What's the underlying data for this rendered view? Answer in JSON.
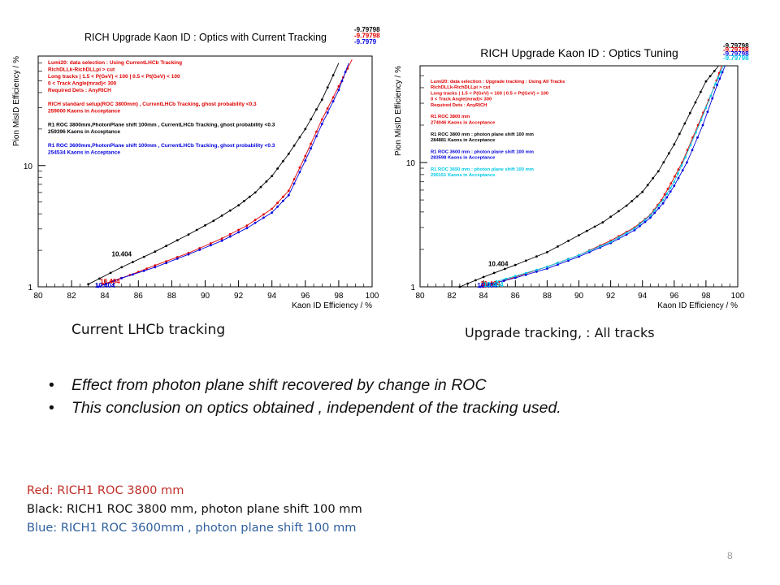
{
  "slide": {
    "page_number": "8",
    "caption_left": "Current LHCb  tracking",
    "caption_right": "Upgrade tracking, : All tracks",
    "bullets": [
      "Effect from photon plane shift recovered by  change in   ROC",
      "This conclusion on optics obtained , independent of the tracking used."
    ],
    "legend_lines": [
      {
        "text": "Red: RICH1 ROC 3800 mm",
        "color": "#c0302a"
      },
      {
        "text": "Black: RICH1 ROC 3800 mm, photon plane shift 100 mm",
        "color": "#111111"
      },
      {
        "text": "Blue: RICH1 ROC 3600mm , photon plane shift 100 mm",
        "color": "#2e5f9e"
      }
    ]
  },
  "chart_data": [
    {
      "type": "line",
      "title": "RICH Upgrade Kaon ID :   Optics with Current Tracking",
      "xlabel": "Kaon ID Efficiency / %",
      "ylabel": "Pion MisID Efficiency / %",
      "xlim": [
        80,
        100
      ],
      "ylim": [
        1,
        80
      ],
      "yscale": "log",
      "x_ticks": [
        "80",
        "82",
        "84",
        "86",
        "88",
        "90",
        "92",
        "94",
        "96",
        "98",
        "100"
      ],
      "y_ticks": [
        "1",
        "10"
      ],
      "top_right_labels": [
        {
          "text": "-9.79798",
          "color": "#000000"
        },
        {
          "text": "-9.79798",
          "color": "#e00000"
        },
        {
          "text": "-9.7979",
          "color": "#0000e0"
        }
      ],
      "point_labels": [
        {
          "text": "10.404",
          "x": 84.6,
          "y": 1.7,
          "color": "#000000"
        },
        {
          "text": "10.404",
          "x": 83.9,
          "y": 1.05,
          "color": "#e00000"
        },
        {
          "text": "10.404",
          "x": 83.6,
          "y": 1.0,
          "color": "#0000e0"
        }
      ],
      "annotations": [
        {
          "text": "Lumi20: data selection : Using CurrentLHCb Tracking",
          "color": "#e00000"
        },
        {
          "text": "RichDLLk-RichDLLpi > cut",
          "color": "#e00000"
        },
        {
          "text": "Long tracks | 1.5 < P(GeV) < 100 | 0.5 < Pt(GeV) < 100",
          "color": "#e00000"
        },
        {
          "text": "  0 < Track Angle(mrad)< 300",
          "color": "#e00000"
        },
        {
          "text": "Required Dets : AnyRICH",
          "color": "#e00000"
        },
        {
          "text": "",
          "color": "#e00000"
        },
        {
          "text": "RICH standard setup(ROC 3800mm) , CurrentLHCb Tracking, ghost probability <0.3",
          "color": "#e00000"
        },
        {
          "text": "259000 Kaons in Acceptance",
          "color": "#e00000"
        },
        {
          "text": "",
          "color": "#000000"
        },
        {
          "text": "R1 ROC 3800mm,PhotonPlane shift 100mm , CurrentLHCb Tracking, ghost probability <0.3",
          "color": "#000000"
        },
        {
          "text": "259396 Kaons in Acceptance",
          "color": "#000000"
        },
        {
          "text": "",
          "color": "#0000e0"
        },
        {
          "text": "R1 ROC 3600mm,PhotonPlane shift 100mm , CurrentLHCb Tracking, ghost probability <0.3",
          "color": "#0000e0"
        },
        {
          "text": "254534 Kaons in Acceptance",
          "color": "#0000e0"
        }
      ],
      "series": [
        {
          "color": "#000000",
          "x": [
            83.0,
            85.0,
            87.0,
            89.0,
            90.5,
            92.0,
            93.0,
            94.0,
            95.0,
            96.0,
            97.0,
            98.0
          ],
          "y": [
            1.05,
            1.45,
            1.95,
            2.7,
            3.5,
            4.7,
            6.0,
            8.2,
            12.5,
            20,
            35,
            70
          ]
        },
        {
          "color": "#e00000",
          "x": [
            83.9,
            85.5,
            87.0,
            89.0,
            91.0,
            92.5,
            94.0,
            95.0,
            96.0,
            97.0,
            98.0,
            98.8
          ],
          "y": [
            1.05,
            1.25,
            1.5,
            1.9,
            2.5,
            3.2,
            4.4,
            6.2,
            12,
            24,
            45,
            75
          ]
        },
        {
          "color": "#0000e0",
          "x": [
            83.6,
            85.0,
            87.0,
            89.0,
            91.0,
            92.5,
            94.0,
            95.0,
            96.0,
            97.0,
            98.0,
            98.6
          ],
          "y": [
            1.0,
            1.18,
            1.45,
            1.85,
            2.4,
            3.05,
            4.1,
            5.7,
            11,
            22,
            42,
            70
          ]
        }
      ]
    },
    {
      "type": "line",
      "title": "RICH Upgrade Kaon ID :    Optics Tuning",
      "xlabel": "Kaon ID Efficiency / %",
      "ylabel": "Pion MisID Efficiency / %",
      "xlim": [
        80,
        100
      ],
      "ylim": [
        1,
        60
      ],
      "yscale": "log",
      "x_ticks": [
        "80",
        "82",
        "84",
        "86",
        "88",
        "90",
        "92",
        "94",
        "96",
        "98",
        "100"
      ],
      "y_ticks": [
        "1",
        "10"
      ],
      "top_right_labels": [
        {
          "text": "-9.79798",
          "color": "#000000"
        },
        {
          "text": "-9.79798",
          "color": "#e00000"
        },
        {
          "text": "-9.79798",
          "color": "#0000e0"
        },
        {
          "text": "-9.79798",
          "color": "#00c8e6"
        }
      ],
      "point_labels": [
        {
          "text": "10.404",
          "x": 84.5,
          "y": 1.4,
          "color": "#000000"
        },
        {
          "text": "10.404",
          "x": 84.0,
          "y": 1.0,
          "color": "#e00000"
        },
        {
          "text": "10.404",
          "x": 83.8,
          "y": 1.0,
          "color": "#0000e0"
        },
        {
          "text": "10.404",
          "x": 84.2,
          "y": 1.05,
          "color": "#00c8e6"
        }
      ],
      "annotations": [
        {
          "text": "Lumi20: data selection : Upgrade tracking : Using All Tracks",
          "color": "#e00000"
        },
        {
          "text": "RichDLLk-RichDLLpi > cut",
          "color": "#e00000"
        },
        {
          "text": "Long tracks | 1.5 < P(GeV) < 100 | 0.5 < Pt(GeV) < 100",
          "color": "#e00000"
        },
        {
          "text": "  0 < Track Angle(mrad)< 300",
          "color": "#e00000"
        },
        {
          "text": "Required Dets : AnyRICH",
          "color": "#e00000"
        },
        {
          "text": "",
          "color": "#e00000"
        },
        {
          "text": "R1 ROC 3800 mm",
          "color": "#e00000"
        },
        {
          "text": "274046 Kaons in Acceptance",
          "color": "#e00000"
        },
        {
          "text": "",
          "color": "#000000"
        },
        {
          "text": "R1 ROC 3800 mm : photon plane shift 100 mm",
          "color": "#000000"
        },
        {
          "text": "284881 Kaons in Acceptance",
          "color": "#000000"
        },
        {
          "text": "",
          "color": "#0000e0"
        },
        {
          "text": "R1 ROC 3600 mm : photon plane shift 100 mm",
          "color": "#0000e0"
        },
        {
          "text": "283598 Kaons in Acceptance",
          "color": "#0000e0"
        },
        {
          "text": "",
          "color": "#00c8e6"
        },
        {
          "text": "R1 ROC 3650 mm : photon plane shift 100 mm",
          "color": "#00c8e6"
        },
        {
          "text": "290151 Kaons in Acceptance",
          "color": "#00c8e6"
        }
      ],
      "series": [
        {
          "color": "#000000",
          "x": [
            82.5,
            84.0,
            86.0,
            88.0,
            90.0,
            91.5,
            93.0,
            94.0,
            95.0,
            96.0,
            97.0,
            98.0,
            98.8
          ],
          "y": [
            1.0,
            1.2,
            1.5,
            1.9,
            2.6,
            3.3,
            4.5,
            5.8,
            8.5,
            14,
            25,
            45,
            60
          ]
        },
        {
          "color": "#e00000",
          "x": [
            84.0,
            86.0,
            88.0,
            90.0,
            92.0,
            93.5,
            94.5,
            95.2,
            95.8,
            96.5,
            97.5,
            98.5,
            99.0
          ],
          "y": [
            1.0,
            1.2,
            1.45,
            1.8,
            2.35,
            3.0,
            3.8,
            5.0,
            6.8,
            10,
            20,
            40,
            60
          ]
        },
        {
          "color": "#0000e0",
          "x": [
            83.8,
            86.0,
            88.0,
            90.0,
            92.0,
            93.5,
            94.5,
            95.3,
            96.0,
            96.8,
            97.8,
            98.7,
            99.2
          ],
          "y": [
            1.0,
            1.18,
            1.4,
            1.75,
            2.25,
            2.85,
            3.6,
            4.7,
            6.5,
            10,
            20,
            42,
            60
          ]
        },
        {
          "color": "#00c8e6",
          "x": [
            84.2,
            86.0,
            88.0,
            90.0,
            92.0,
            93.5,
            94.5,
            95.3,
            96.0,
            96.7,
            97.7,
            98.6,
            99.1
          ],
          "y": [
            1.05,
            1.22,
            1.45,
            1.8,
            2.3,
            2.95,
            3.75,
            5.0,
            7.0,
            11,
            22,
            43,
            60
          ]
        }
      ]
    }
  ]
}
